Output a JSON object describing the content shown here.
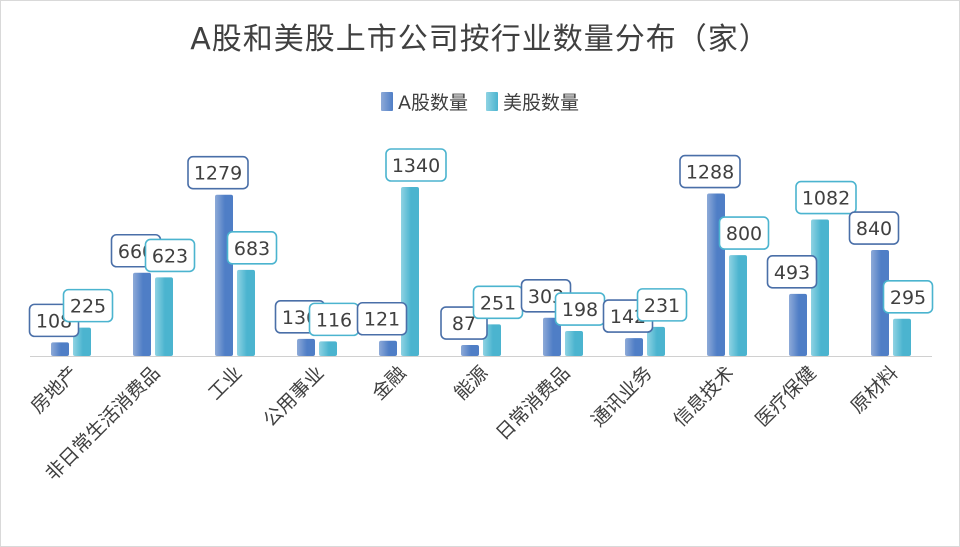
{
  "chart_data": {
    "type": "bar",
    "title": "A股和美股上市公司按行业数量分布（家）",
    "categories": [
      "房地产",
      "非日常生活消费品",
      "工业",
      "公用事业",
      "金融",
      "能源",
      "日常消费品",
      "通讯业务",
      "信息技术",
      "医疗保健",
      "原材料"
    ],
    "series": [
      {
        "name": "A股数量",
        "values": [
          108,
          660,
          1279,
          136,
          121,
          87,
          303,
          142,
          1288,
          493,
          840
        ],
        "color": "#4f7ec6",
        "color_light": "#8eaad8"
      },
      {
        "name": "美股数量",
        "values": [
          225,
          623,
          683,
          116,
          1340,
          251,
          198,
          231,
          800,
          1082,
          295
        ],
        "color": "#4bb4cf",
        "color_light": "#8fd3e3"
      }
    ],
    "ylim": [
      0,
      1340
    ],
    "grid": false,
    "legend_position": "top"
  }
}
